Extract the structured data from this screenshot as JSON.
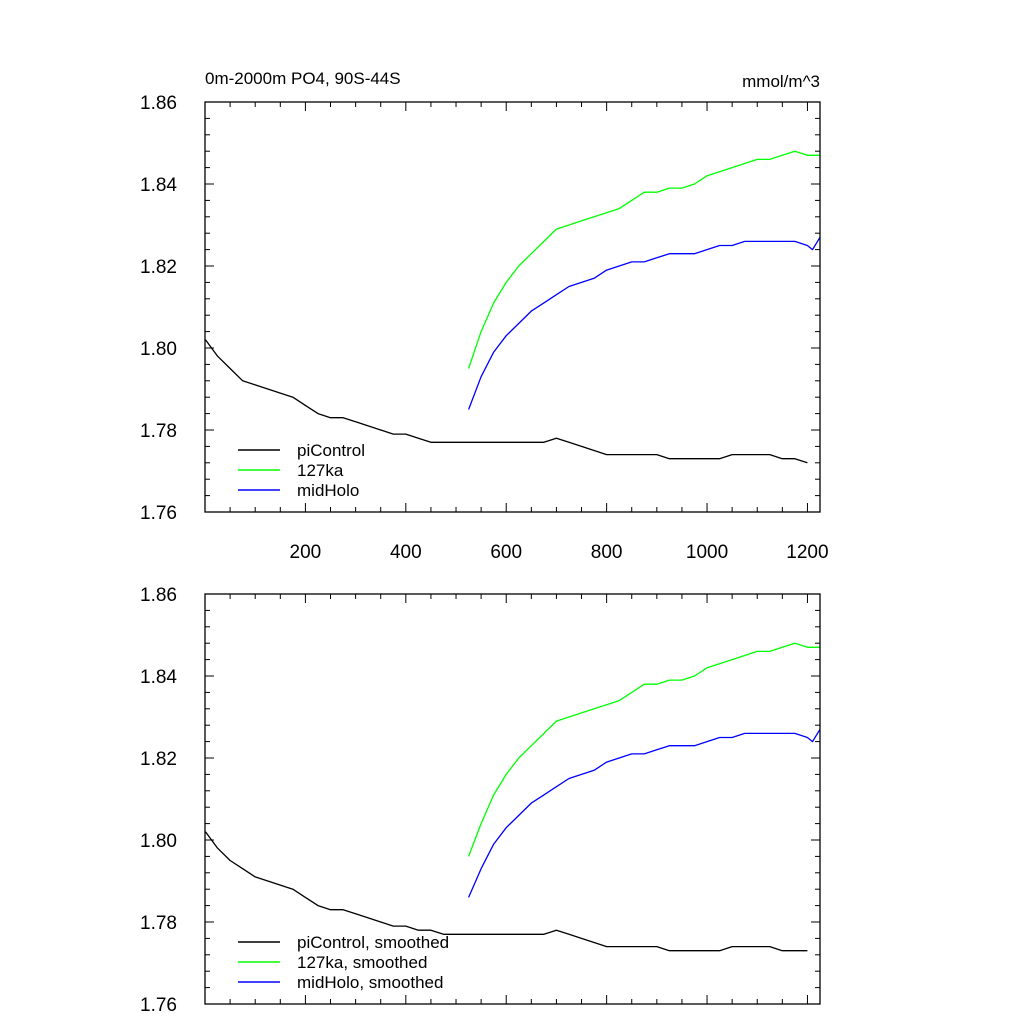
{
  "chart_data": [
    {
      "type": "line",
      "title": "0m-2000m PO4, 90S-44S",
      "units": "mmol/m^3",
      "xlim": [
        0,
        1225
      ],
      "ylim": [
        1.76,
        1.86
      ],
      "xticks": [
        200,
        400,
        600,
        800,
        1000,
        1200
      ],
      "xtick_labels": [
        "200",
        "400",
        "600",
        "800",
        "1000",
        "1200"
      ],
      "yticks": [
        1.76,
        1.78,
        1.8,
        1.82,
        1.84,
        1.86
      ],
      "ytick_labels": [
        "1.76",
        "1.78",
        "1.80",
        "1.82",
        "1.84",
        "1.86"
      ],
      "grid": false,
      "legend_position": "bottom-left",
      "series": [
        {
          "name": "piControl",
          "color": "#000000",
          "x": [
            1,
            25,
            50,
            75,
            100,
            125,
            150,
            175,
            200,
            225,
            250,
            275,
            300,
            325,
            350,
            375,
            400,
            425,
            450,
            475,
            500,
            525,
            550,
            575,
            600,
            625,
            650,
            675,
            700,
            725,
            750,
            775,
            800,
            825,
            850,
            875,
            900,
            925,
            950,
            975,
            1000,
            1025,
            1050,
            1075,
            1100,
            1125,
            1150,
            1175,
            1200
          ],
          "values": [
            1.802,
            1.798,
            1.795,
            1.792,
            1.791,
            1.79,
            1.789,
            1.788,
            1.786,
            1.784,
            1.783,
            1.783,
            1.782,
            1.781,
            1.78,
            1.779,
            1.779,
            1.778,
            1.777,
            1.777,
            1.777,
            1.777,
            1.777,
            1.777,
            1.777,
            1.777,
            1.777,
            1.777,
            1.778,
            1.777,
            1.776,
            1.775,
            1.774,
            1.774,
            1.774,
            1.774,
            1.774,
            1.773,
            1.773,
            1.773,
            1.773,
            1.773,
            1.774,
            1.774,
            1.774,
            1.774,
            1.773,
            1.773,
            1.772
          ]
        },
        {
          "name": "127ka",
          "color": "#00ff00",
          "x": [
            525,
            550,
            575,
            600,
            625,
            650,
            675,
            700,
            725,
            750,
            775,
            800,
            825,
            850,
            875,
            900,
            925,
            950,
            975,
            1000,
            1025,
            1050,
            1075,
            1100,
            1125,
            1150,
            1175,
            1200,
            1225
          ],
          "values": [
            1.795,
            1.804,
            1.811,
            1.816,
            1.82,
            1.823,
            1.826,
            1.829,
            1.83,
            1.831,
            1.832,
            1.833,
            1.834,
            1.836,
            1.838,
            1.838,
            1.839,
            1.839,
            1.84,
            1.842,
            1.843,
            1.844,
            1.845,
            1.846,
            1.846,
            1.847,
            1.848,
            1.847,
            1.847
          ]
        },
        {
          "name": "midHolo",
          "color": "#0000ff",
          "x": [
            525,
            550,
            575,
            600,
            625,
            650,
            675,
            700,
            725,
            750,
            775,
            800,
            825,
            850,
            875,
            900,
            925,
            950,
            975,
            1000,
            1025,
            1050,
            1075,
            1100,
            1125,
            1150,
            1175,
            1200,
            1210,
            1225
          ],
          "values": [
            1.785,
            1.793,
            1.799,
            1.803,
            1.806,
            1.809,
            1.811,
            1.813,
            1.815,
            1.816,
            1.817,
            1.819,
            1.82,
            1.821,
            1.821,
            1.822,
            1.823,
            1.823,
            1.823,
            1.824,
            1.825,
            1.825,
            1.826,
            1.826,
            1.826,
            1.826,
            1.826,
            1.825,
            1.824,
            1.827
          ]
        }
      ]
    },
    {
      "type": "line",
      "xlim": [
        0,
        1225
      ],
      "ylim": [
        1.76,
        1.86
      ],
      "xticks": [
        200,
        400,
        600,
        800,
        1000,
        1200
      ],
      "yticks": [
        1.76,
        1.78,
        1.8,
        1.82,
        1.84,
        1.86
      ],
      "ytick_labels": [
        "1.76",
        "1.78",
        "1.80",
        "1.82",
        "1.84",
        "1.86"
      ],
      "grid": false,
      "legend_position": "bottom-left",
      "series": [
        {
          "name": "piControl, smoothed",
          "color": "#000000",
          "x": [
            1,
            25,
            50,
            75,
            100,
            125,
            150,
            175,
            200,
            225,
            250,
            275,
            300,
            325,
            350,
            375,
            400,
            425,
            450,
            475,
            500,
            525,
            550,
            575,
            600,
            625,
            650,
            675,
            700,
            725,
            750,
            775,
            800,
            825,
            850,
            875,
            900,
            925,
            950,
            975,
            1000,
            1025,
            1050,
            1075,
            1100,
            1125,
            1150,
            1175,
            1200
          ],
          "values": [
            1.802,
            1.798,
            1.795,
            1.793,
            1.791,
            1.79,
            1.789,
            1.788,
            1.786,
            1.784,
            1.783,
            1.783,
            1.782,
            1.781,
            1.78,
            1.779,
            1.779,
            1.778,
            1.778,
            1.777,
            1.777,
            1.777,
            1.777,
            1.777,
            1.777,
            1.777,
            1.777,
            1.777,
            1.778,
            1.777,
            1.776,
            1.775,
            1.774,
            1.774,
            1.774,
            1.774,
            1.774,
            1.773,
            1.773,
            1.773,
            1.773,
            1.773,
            1.774,
            1.774,
            1.774,
            1.774,
            1.773,
            1.773,
            1.773
          ]
        },
        {
          "name": "127ka, smoothed",
          "color": "#00ff00",
          "x": [
            525,
            550,
            575,
            600,
            625,
            650,
            675,
            700,
            725,
            750,
            775,
            800,
            825,
            850,
            875,
            900,
            925,
            950,
            975,
            1000,
            1025,
            1050,
            1075,
            1100,
            1125,
            1150,
            1175,
            1200,
            1225
          ],
          "values": [
            1.796,
            1.804,
            1.811,
            1.816,
            1.82,
            1.823,
            1.826,
            1.829,
            1.83,
            1.831,
            1.832,
            1.833,
            1.834,
            1.836,
            1.838,
            1.838,
            1.839,
            1.839,
            1.84,
            1.842,
            1.843,
            1.844,
            1.845,
            1.846,
            1.846,
            1.847,
            1.848,
            1.847,
            1.847
          ]
        },
        {
          "name": "midHolo, smoothed",
          "color": "#0000ff",
          "x": [
            525,
            550,
            575,
            600,
            625,
            650,
            675,
            700,
            725,
            750,
            775,
            800,
            825,
            850,
            875,
            900,
            925,
            950,
            975,
            1000,
            1025,
            1050,
            1075,
            1100,
            1125,
            1150,
            1175,
            1200,
            1210,
            1225
          ],
          "values": [
            1.786,
            1.793,
            1.799,
            1.803,
            1.806,
            1.809,
            1.811,
            1.813,
            1.815,
            1.816,
            1.817,
            1.819,
            1.82,
            1.821,
            1.821,
            1.822,
            1.823,
            1.823,
            1.823,
            1.824,
            1.825,
            1.825,
            1.826,
            1.826,
            1.826,
            1.826,
            1.826,
            1.825,
            1.824,
            1.827
          ]
        }
      ]
    }
  ]
}
